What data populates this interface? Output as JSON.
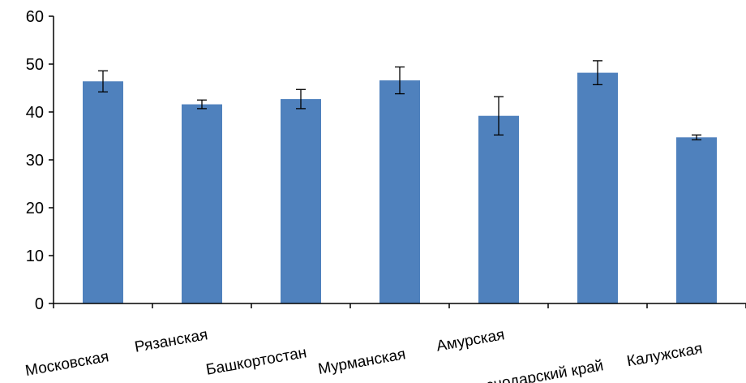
{
  "chart_data": {
    "type": "bar",
    "title": "",
    "xlabel": "",
    "ylabel": "",
    "ylim": [
      0,
      60
    ],
    "yticks": [
      0,
      10,
      20,
      30,
      40,
      50,
      60
    ],
    "grid": false,
    "legend": "none",
    "bar_color": "#4F81BD",
    "error_bar_color": "#000000",
    "categories": [
      "Московская",
      "Рязанская",
      "Башкортостан",
      "Мурманская",
      "Амурская",
      "Краснодарский край",
      "Калужская"
    ],
    "values": [
      46.4,
      41.6,
      42.7,
      46.6,
      39.2,
      48.2,
      34.7
    ],
    "errors": [
      2.2,
      0.9,
      2.0,
      2.8,
      4.0,
      2.5,
      0.5
    ]
  }
}
